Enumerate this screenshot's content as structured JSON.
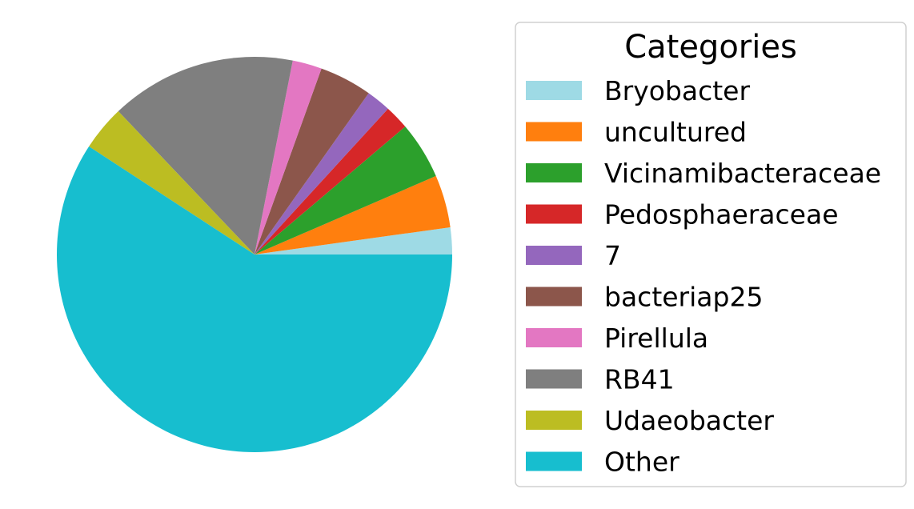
{
  "chart_data": {
    "type": "pie",
    "legend": {
      "title": "Categories",
      "placement": "right"
    },
    "start_angle_deg": 0,
    "direction": "counterclockwise",
    "slices": [
      {
        "label": "Bryobacter",
        "value": 2.2,
        "color": "#9edae5"
      },
      {
        "label": "uncultured",
        "value": 4.3,
        "color": "#ff7f0e"
      },
      {
        "label": "Vicinamibacteraceae",
        "value": 4.7,
        "color": "#2ca02c"
      },
      {
        "label": "Pedosphaeraceae",
        "value": 2.0,
        "color": "#d62728"
      },
      {
        "label": "7",
        "value": 2.0,
        "color": "#9467bd"
      },
      {
        "label": "bacteriap25",
        "value": 4.3,
        "color": "#8c564b"
      },
      {
        "label": "Pirellula",
        "value": 2.4,
        "color": "#e377c2"
      },
      {
        "label": "RB41",
        "value": 15.2,
        "color": "#7f7f7f"
      },
      {
        "label": "Udaeobacter",
        "value": 3.7,
        "color": "#bcbd22"
      },
      {
        "label": "Other",
        "value": 59.2,
        "color": "#17becf"
      }
    ]
  }
}
